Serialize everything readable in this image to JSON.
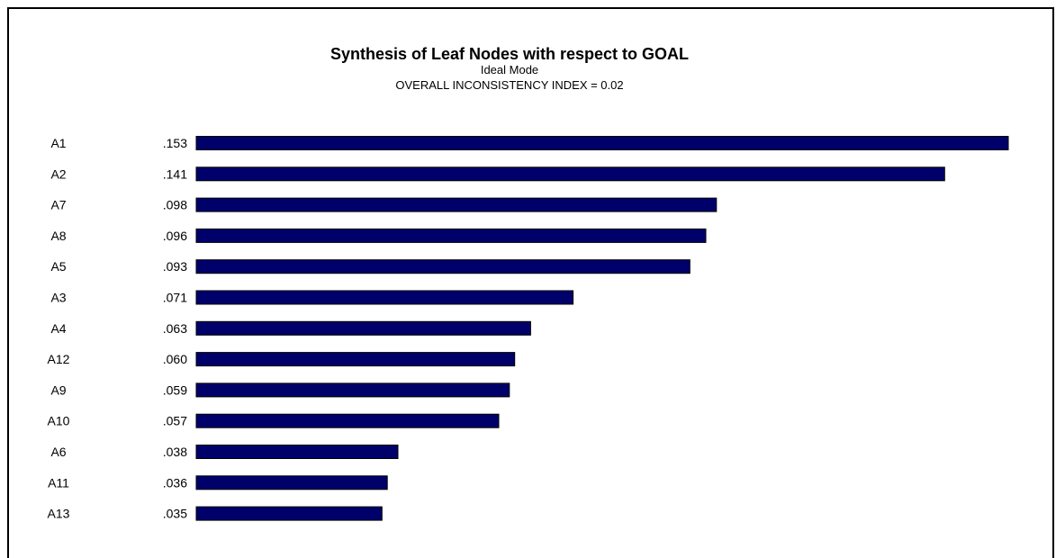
{
  "chart_data": {
    "type": "bar",
    "orientation": "horizontal",
    "title": "Synthesis of Leaf Nodes with respect to GOAL",
    "subtitle": "Ideal Mode",
    "annotation": "OVERALL INCONSISTENCY INDEX = 0.02",
    "categories": [
      "A1",
      "A2",
      "A7",
      "A8",
      "A5",
      "A3",
      "A4",
      "A12",
      "A9",
      "A10",
      "A6",
      "A11",
      "A13"
    ],
    "values": [
      0.153,
      0.141,
      0.098,
      0.096,
      0.093,
      0.071,
      0.063,
      0.06,
      0.059,
      0.057,
      0.038,
      0.036,
      0.035
    ],
    "value_labels": [
      ".153",
      ".141",
      ".098",
      ".096",
      ".093",
      ".071",
      ".063",
      ".060",
      ".059",
      ".057",
      ".038",
      ".036",
      ".035"
    ],
    "xlim": [
      0,
      0.153
    ],
    "grid": false,
    "bar_color": "#00006b",
    "bar_edge_color": "#000000"
  }
}
